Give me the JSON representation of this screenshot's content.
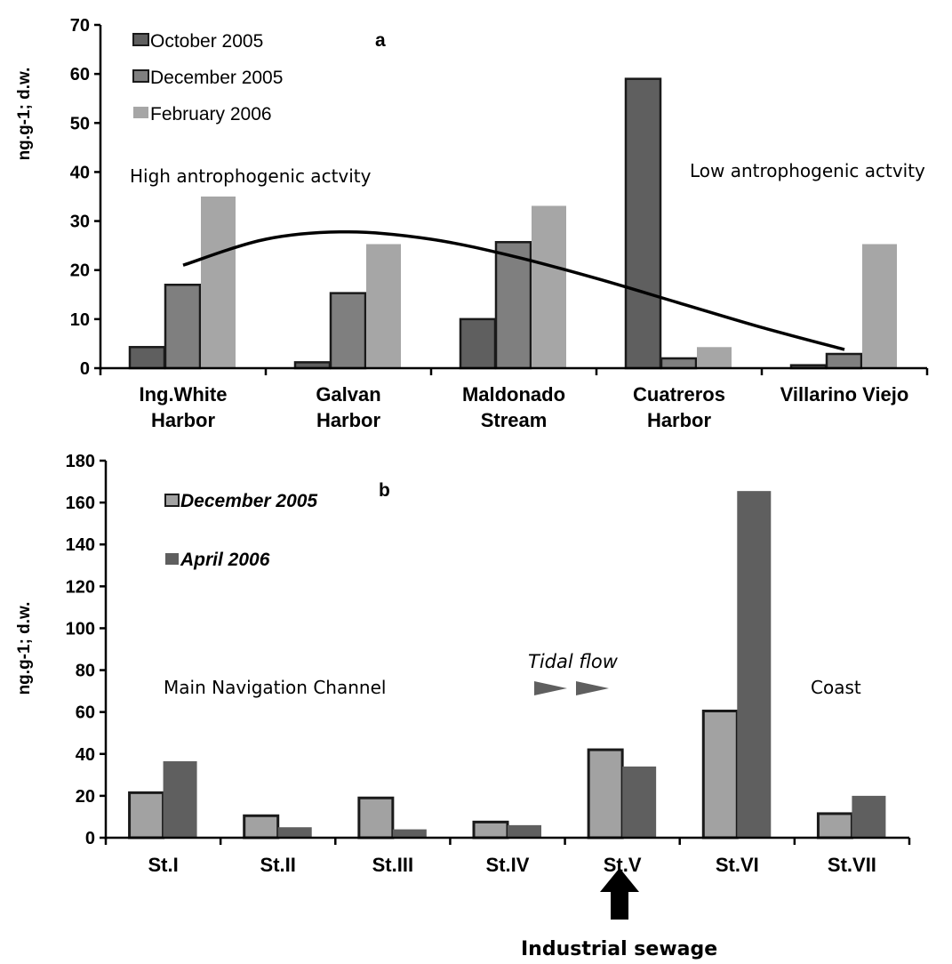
{
  "colors": {
    "dark": "#5f5f5f",
    "medium": "#7f7f7f",
    "light": "#a6a6a6",
    "light2": "#a2a2a2",
    "outline": "#1a1a1a"
  },
  "chart_data": [
    {
      "type": "bar",
      "panel_label": "a",
      "ylabel": "ng.g-1; d.w.",
      "ylim": [
        0,
        70
      ],
      "yticks": [
        "0",
        "10",
        "20",
        "30",
        "40",
        "50",
        "60",
        "70"
      ],
      "categories": [
        [
          "Ing.White",
          "Harbor"
        ],
        [
          "Galvan",
          "Harbor"
        ],
        [
          "Maldonado",
          "Stream"
        ],
        [
          "Cuatreros",
          "Harbor"
        ],
        [
          "Villarino Viejo"
        ]
      ],
      "series": [
        {
          "name": "October 2005",
          "color": "#5f5f5f",
          "values": [
            4.3,
            1.2,
            10,
            59,
            0.6
          ]
        },
        {
          "name": "December 2005",
          "color": "#7f7f7f",
          "values": [
            17,
            15.3,
            25.7,
            2,
            2.9
          ]
        },
        {
          "name": "February 2006",
          "color": "#a6a6a6",
          "values": [
            35,
            25.3,
            33.1,
            4.3,
            25.3
          ]
        }
      ],
      "trendline": {
        "type": "polynomial",
        "x": [
          0,
          0.5,
          1,
          1.5,
          2,
          2.5,
          3,
          3.5,
          4
        ],
        "y": [
          21,
          26.3,
          27.8,
          26.3,
          22.8,
          18.3,
          13.3,
          8.3,
          3.8
        ]
      },
      "annotations": [
        "High antrophogenic actvity",
        "Low antrophogenic actvity"
      ],
      "legend_position": "top-left",
      "grid": false
    },
    {
      "type": "bar",
      "panel_label": "b",
      "ylabel": "ng.g-1; d.w.",
      "ylim": [
        0,
        180
      ],
      "yticks": [
        "0",
        "20",
        "40",
        "60",
        "80",
        "100",
        "120",
        "140",
        "160",
        "180"
      ],
      "categories": [
        "St.I",
        "St.II",
        "St.III",
        "St.IV",
        "St.V",
        "St.VI",
        "St.VII"
      ],
      "series": [
        {
          "name": "December 2005",
          "color": "#a2a2a2",
          "values": [
            21.5,
            10.5,
            19,
            7.5,
            42,
            60.5,
            11.5
          ]
        },
        {
          "name": "April 2006",
          "color": "#5f5f5f",
          "values": [
            36.5,
            5,
            4,
            6,
            34,
            165.5,
            20
          ]
        }
      ],
      "annotations": [
        "Main Navigation Channel",
        "Tidal flow",
        "Coast",
        "Industrial sewage"
      ],
      "legend_position": "top-left",
      "grid": false
    }
  ]
}
